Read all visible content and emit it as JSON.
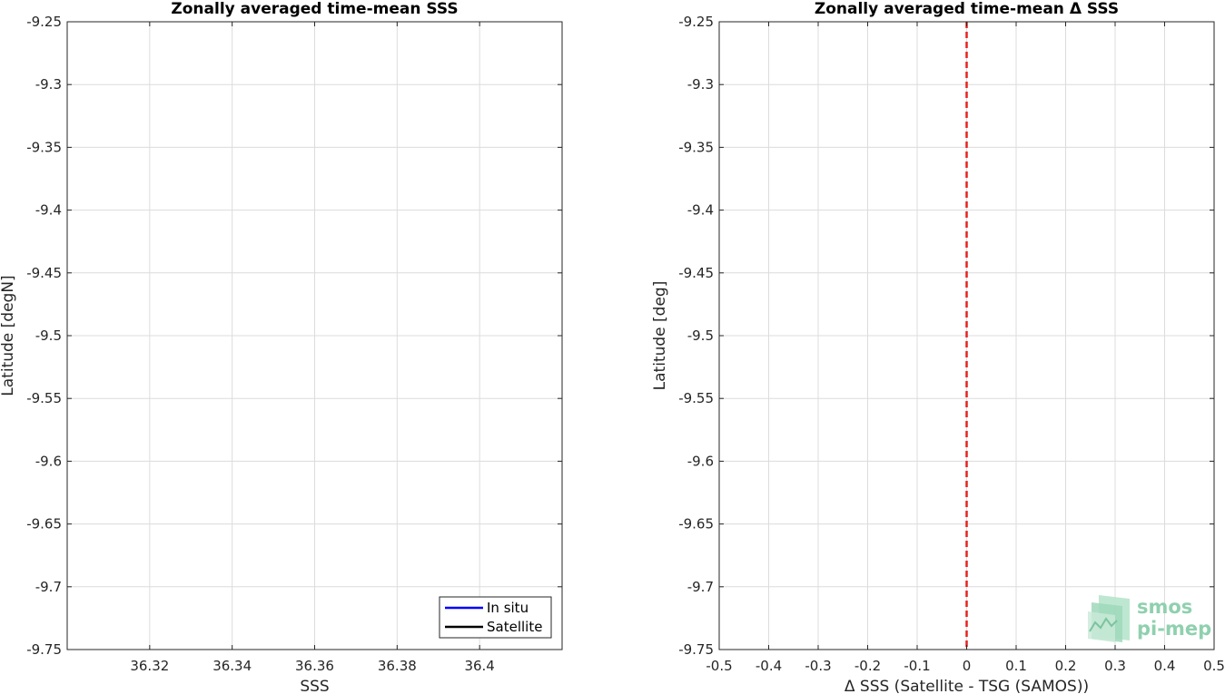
{
  "chart_data": [
    {
      "type": "line",
      "title": "Zonally averaged time-mean SSS",
      "xlabel": "SSS",
      "ylabel": "Latitude [degN]",
      "xlim": [
        36.3,
        36.42
      ],
      "ylim": [
        -9.75,
        -9.25
      ],
      "xticks": [
        36.32,
        36.34,
        36.36,
        36.38,
        36.4
      ],
      "xtick_labels": [
        "36.32",
        "36.34",
        "36.36",
        "36.38",
        "36.4"
      ],
      "yticks": [
        -9.25,
        -9.3,
        -9.35,
        -9.4,
        -9.45,
        -9.5,
        -9.55,
        -9.6,
        -9.65,
        -9.7,
        -9.75
      ],
      "ytick_labels": [
        "-9.25",
        "-9.3",
        "-9.35",
        "-9.4",
        "-9.45",
        "-9.5",
        "-9.55",
        "-9.6",
        "-9.65",
        "-9.7",
        "-9.75"
      ],
      "grid": true,
      "legend_position": "bottom-right",
      "series": [
        {
          "name": "In situ",
          "color": "#0000ff",
          "points": []
        },
        {
          "name": "Satellite",
          "color": "#000000",
          "points": []
        }
      ]
    },
    {
      "type": "line",
      "title": "Zonally averaged time-mean Δ SSS",
      "xlabel": "Δ SSS (Satellite - TSG (SAMOS))",
      "ylabel": "Latitude [deg]",
      "xlim": [
        -0.5,
        0.5
      ],
      "ylim": [
        -9.75,
        -9.25
      ],
      "xticks": [
        -0.5,
        -0.4,
        -0.3,
        -0.2,
        -0.1,
        0,
        0.1,
        0.2,
        0.3,
        0.4,
        0.5
      ],
      "xtick_labels": [
        "-0.5",
        "-0.4",
        "-0.3",
        "-0.2",
        "-0.1",
        "0",
        "0.1",
        "0.2",
        "0.3",
        "0.4",
        "0.5"
      ],
      "yticks": [
        -9.25,
        -9.3,
        -9.35,
        -9.4,
        -9.45,
        -9.5,
        -9.55,
        -9.6,
        -9.65,
        -9.7,
        -9.75
      ],
      "ytick_labels": [
        "-9.25",
        "-9.3",
        "-9.35",
        "-9.4",
        "-9.45",
        "-9.5",
        "-9.55",
        "-9.6",
        "-9.65",
        "-9.7",
        "-9.75"
      ],
      "grid": true,
      "reference_line": {
        "x": 0,
        "color": "#e8221f",
        "style": "dashed"
      },
      "series": []
    }
  ],
  "logo": {
    "line1": "smos",
    "line2": "pi-mep",
    "color": "#8fd0ae"
  }
}
